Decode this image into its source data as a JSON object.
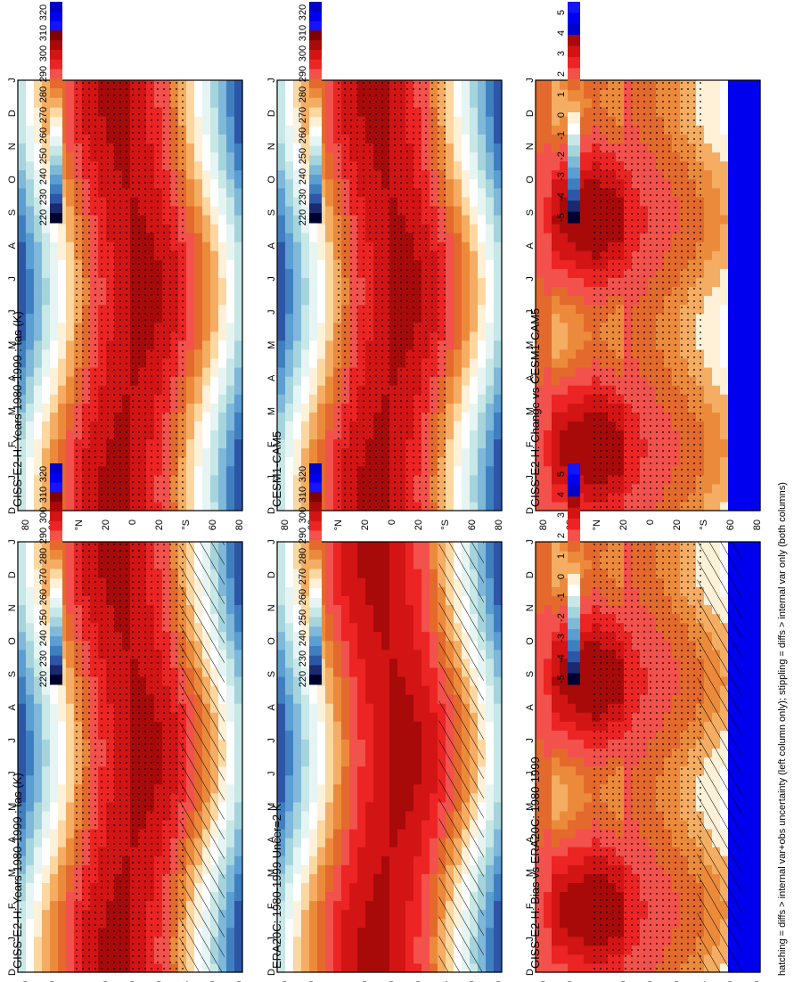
{
  "figure": {
    "footnote": "hatching = diffs > internal var+obs uncertainty (left column only); stippling = diffs > internal var only (both columns)"
  },
  "palettes": {
    "temperature": [
      "#000030",
      "#1b2a6e",
      "#2e56a6",
      "#3f7fc0",
      "#5c9ed1",
      "#7fb8d8",
      "#a6d4dc",
      "#c7e8e6",
      "#e6f5f3",
      "#ffffff",
      "#fff1d8",
      "#fcd7a0",
      "#f4ad62",
      "#ec8a3c",
      "#e36a2c",
      "#f2514c",
      "#ec2424",
      "#d21414",
      "#a80a0a",
      "#7e0000",
      "#1414ff",
      "#0000ee",
      "#0000c8"
    ],
    "difference": [
      "#000030",
      "#1b2a6e",
      "#2e56a6",
      "#3f7fc0",
      "#5c9ed1",
      "#7fb8d8",
      "#a6d4dc",
      "#c7e8e6",
      "#ffffff",
      "#fff1d8",
      "#f4ad62",
      "#ec8a3c",
      "#e36a2c",
      "#f2514c",
      "#ec2424",
      "#d21414",
      "#a80a0a",
      "#0000c8",
      "#0000ee",
      "#1414ff"
    ]
  },
  "panels": [
    {
      "id": "model",
      "title": "GISS-E2-H: Years 1980-1999 : tas (K)",
      "kind": "temperature",
      "hatch": true,
      "stipple": true
    },
    {
      "id": "obs",
      "title": "ERA20C: 1980-1999 Uncer=2 K",
      "kind": "temperature",
      "hatch": true,
      "stipple": false
    },
    {
      "id": "bias",
      "title": "GISS-E2-H: Bias vs ERA20C: 1980-1999",
      "kind": "difference",
      "hatch": true,
      "stipple": true
    },
    {
      "id": "model2",
      "title": "GISS-E2-H: Years 1980-1999 : tas (K)",
      "kind": "temperature",
      "hatch": false,
      "stipple": true
    },
    {
      "id": "ref",
      "title": "CESM1-CAM5",
      "kind": "temperature",
      "hatch": false,
      "stipple": true
    },
    {
      "id": "change",
      "title": "GISS-E2-H: Change vs CESM1-CAM5",
      "kind": "difference",
      "hatch": false,
      "stipple": true
    }
  ],
  "chart_data": [
    {
      "type": "heatmap",
      "title": "GISS-E2-H: Years 1980-1999 : tas (K)",
      "x": [
        "D",
        "J",
        "F",
        "M",
        "A",
        "M",
        "J",
        "J",
        "A",
        "S",
        "O",
        "N",
        "D",
        "J"
      ],
      "y_ticks": [
        "80",
        "60",
        "°N",
        "20",
        "0",
        "20",
        "°S",
        "60",
        "80"
      ],
      "ylim": [
        -90,
        90
      ],
      "colorbar_ticks": [
        "320",
        "310",
        "300",
        "290",
        "280",
        "270",
        "260",
        "250",
        "240",
        "230",
        "220"
      ]
    },
    {
      "type": "heatmap",
      "title": "ERA20C: 1980-1999 Uncer=2 K",
      "x": [
        "D",
        "J",
        "F",
        "M",
        "A",
        "M",
        "J",
        "J",
        "A",
        "S",
        "O",
        "N",
        "D",
        "J"
      ],
      "y_ticks": [
        "80",
        "60",
        "°N",
        "20",
        "0",
        "20",
        "°S",
        "60",
        "80"
      ],
      "ylim": [
        -90,
        90
      ],
      "colorbar_ticks": [
        "320",
        "310",
        "300",
        "290",
        "280",
        "270",
        "260",
        "250",
        "240",
        "230",
        "220"
      ]
    },
    {
      "type": "heatmap",
      "title": "GISS-E2-H: Bias vs ERA20C: 1980-1999",
      "x": [
        "D",
        "J",
        "F",
        "M",
        "A",
        "M",
        "J",
        "J",
        "A",
        "S",
        "O",
        "N",
        "D",
        "J"
      ],
      "y_ticks": [
        "80",
        "60",
        "°N",
        "20",
        "0",
        "20",
        "°S",
        "60",
        "80"
      ],
      "ylim": [
        -90,
        90
      ],
      "colorbar_ticks": [
        "5",
        "4",
        "3",
        "2",
        "1",
        "0",
        "-1",
        "-2",
        "-3",
        "-4",
        "-5"
      ]
    },
    {
      "type": "heatmap",
      "title": "GISS-E2-H: Years 1980-1999 : tas (K)",
      "x": [
        "D",
        "J",
        "F",
        "M",
        "A",
        "M",
        "J",
        "J",
        "A",
        "S",
        "O",
        "N",
        "D",
        "J"
      ],
      "y_ticks": [
        "80",
        "60",
        "°N",
        "20",
        "0",
        "20",
        "°S",
        "60",
        "80"
      ],
      "ylim": [
        -90,
        90
      ],
      "colorbar_ticks": [
        "320",
        "310",
        "300",
        "290",
        "280",
        "270",
        "260",
        "250",
        "240",
        "230",
        "220"
      ]
    },
    {
      "type": "heatmap",
      "title": "CESM1-CAM5",
      "x": [
        "D",
        "J",
        "F",
        "M",
        "A",
        "M",
        "J",
        "J",
        "A",
        "S",
        "O",
        "N",
        "D",
        "J"
      ],
      "y_ticks": [
        "80",
        "60",
        "°N",
        "20",
        "0",
        "20",
        "°S",
        "60",
        "80"
      ],
      "ylim": [
        -90,
        90
      ],
      "colorbar_ticks": [
        "320",
        "310",
        "300",
        "290",
        "280",
        "270",
        "260",
        "250",
        "240",
        "230",
        "220"
      ]
    },
    {
      "type": "heatmap",
      "title": "GISS-E2-H: Change vs CESM1-CAM5",
      "x": [
        "D",
        "J",
        "F",
        "M",
        "A",
        "M",
        "J",
        "J",
        "A",
        "S",
        "O",
        "N",
        "D",
        "J"
      ],
      "y_ticks": [
        "80",
        "60",
        "°N",
        "20",
        "0",
        "20",
        "°S",
        "60",
        "80"
      ],
      "ylim": [
        -90,
        90
      ],
      "colorbar_ticks": [
        "5",
        "4",
        "3",
        "2",
        "1",
        "0",
        "-1",
        "-2",
        "-3",
        "-4",
        "-5"
      ]
    }
  ]
}
